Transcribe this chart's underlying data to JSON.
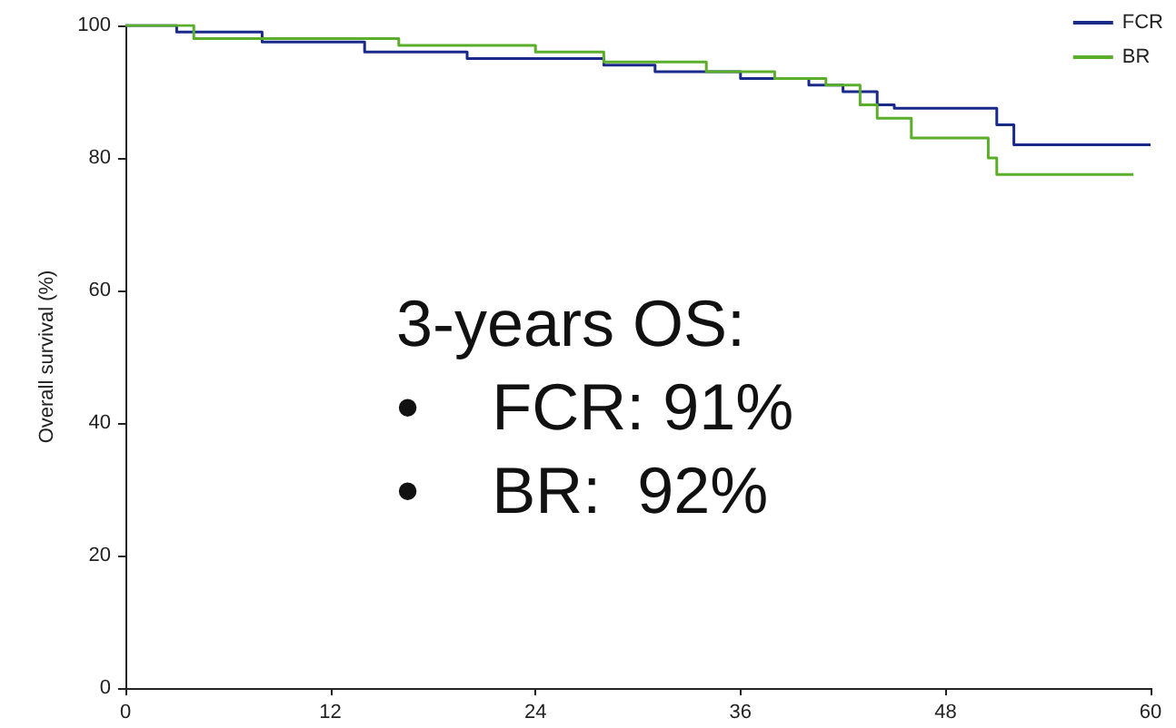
{
  "chart_data": {
    "type": "step",
    "ylabel": "Overall survival (%)",
    "xlim": [
      0,
      60
    ],
    "xticks": [
      0,
      12,
      24,
      36,
      48,
      60
    ],
    "ylim": [
      0,
      100
    ],
    "yticks": [
      0,
      20,
      40,
      60,
      80,
      100
    ],
    "legend": "top right",
    "grid": false,
    "annotations": [
      "3-years OS:",
      "•    FCR: 91%",
      "•    BR:  92%"
    ],
    "series": [
      {
        "name": "FCR",
        "color": "#1a2a8a",
        "x": [
          0,
          3,
          8,
          14,
          20,
          28,
          31,
          36,
          40,
          42,
          44,
          45,
          51,
          52,
          60
        ],
        "values": [
          100,
          99,
          97.5,
          96,
          95,
          94,
          93,
          92,
          91,
          90,
          88,
          87.5,
          85,
          82,
          82
        ]
      },
      {
        "name": "BR",
        "color": "#5aae2a",
        "x": [
          0,
          4,
          16,
          24,
          28,
          34,
          38,
          41,
          43,
          44,
          46,
          50.5,
          51,
          59
        ],
        "values": [
          100,
          98,
          97,
          96,
          94.5,
          93,
          92,
          91,
          88,
          86,
          83,
          80,
          77.5,
          77.5
        ]
      }
    ]
  }
}
